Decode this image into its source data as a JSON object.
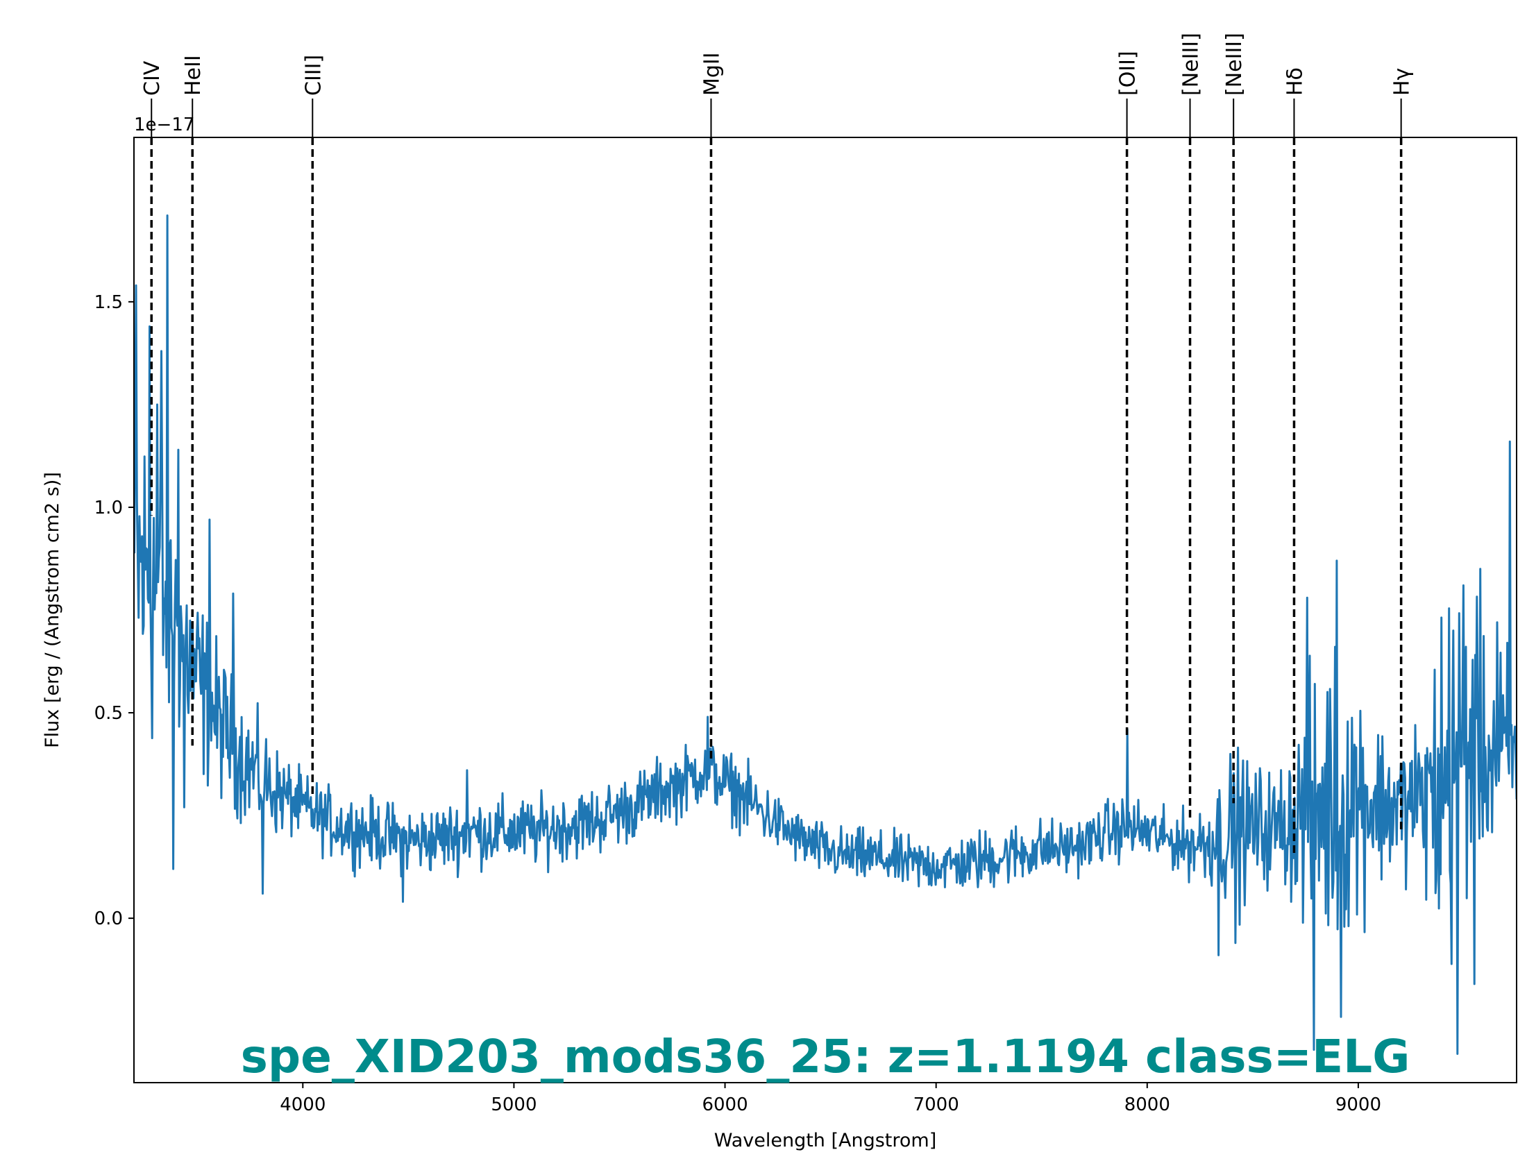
{
  "chart_data": {
    "type": "line",
    "title": "spe_XID203_mods36_25: z=1.1194 class=ELG",
    "xlabel": "Wavelength [Angstrom]",
    "ylabel": "Flux [erg / (Angstrom cm2 s)]",
    "y_offset_label": "1e−17",
    "xlim": [
      3200,
      9750
    ],
    "ylim": [
      -0.4,
      1.9
    ],
    "x_ticks": [
      4000,
      5000,
      6000,
      7000,
      8000,
      9000
    ],
    "x_tick_labels": [
      "4000",
      "5000",
      "6000",
      "7000",
      "8000",
      "9000"
    ],
    "y_ticks": [
      0.0,
      0.5,
      1.0,
      1.5
    ],
    "y_tick_labels": [
      "0.0",
      "0.5",
      "1.0",
      "1.5"
    ],
    "grid": false,
    "series_color": "#1f77b4",
    "title_color": "#008b8b",
    "spectrum": {
      "x": [
        3200,
        3300,
        3400,
        3500,
        3600,
        3700,
        3800,
        3900,
        4000,
        4100,
        4200,
        4300,
        4400,
        4500,
        4600,
        4700,
        4800,
        4900,
        5000,
        5100,
        5200,
        5300,
        5400,
        5500,
        5600,
        5700,
        5800,
        5850,
        5900,
        5950,
        6000,
        6100,
        6200,
        6300,
        6400,
        6500,
        6600,
        6700,
        6800,
        6900,
        7000,
        7100,
        7200,
        7300,
        7400,
        7500,
        7600,
        7700,
        7800,
        7900,
        8000,
        8100,
        8200,
        8300,
        8400,
        8500,
        8600,
        8700,
        8800,
        8900,
        9000,
        9100,
        9200,
        9300,
        9400,
        9500,
        9600,
        9700,
        9750
      ],
      "y": [
        0.85,
        0.82,
        0.72,
        0.58,
        0.48,
        0.4,
        0.34,
        0.3,
        0.27,
        0.24,
        0.22,
        0.21,
        0.2,
        0.19,
        0.19,
        0.2,
        0.21,
        0.21,
        0.21,
        0.21,
        0.22,
        0.23,
        0.24,
        0.26,
        0.28,
        0.31,
        0.33,
        0.35,
        0.36,
        0.35,
        0.33,
        0.29,
        0.25,
        0.21,
        0.18,
        0.16,
        0.15,
        0.15,
        0.14,
        0.13,
        0.13,
        0.13,
        0.14,
        0.15,
        0.16,
        0.17,
        0.17,
        0.18,
        0.21,
        0.22,
        0.21,
        0.19,
        0.18,
        0.19,
        0.21,
        0.22,
        0.22,
        0.24,
        0.27,
        0.3,
        0.3,
        0.28,
        0.27,
        0.28,
        0.32,
        0.42,
        0.4,
        0.38,
        0.36
      ],
      "noise_amplitude": [
        0.26,
        0.26,
        0.17,
        0.14,
        0.11,
        0.09,
        0.08,
        0.06,
        0.05,
        0.05,
        0.05,
        0.05,
        0.05,
        0.05,
        0.05,
        0.05,
        0.05,
        0.05,
        0.05,
        0.05,
        0.05,
        0.05,
        0.05,
        0.05,
        0.05,
        0.05,
        0.05,
        0.05,
        0.05,
        0.05,
        0.05,
        0.05,
        0.045,
        0.04,
        0.04,
        0.04,
        0.04,
        0.04,
        0.04,
        0.04,
        0.04,
        0.04,
        0.045,
        0.045,
        0.045,
        0.045,
        0.04,
        0.04,
        0.045,
        0.045,
        0.045,
        0.04,
        0.05,
        0.07,
        0.12,
        0.1,
        0.08,
        0.12,
        0.22,
        0.22,
        0.18,
        0.12,
        0.1,
        0.1,
        0.3,
        0.25,
        0.15,
        0.18,
        0.12
      ],
      "spikes": [
        {
          "x": 3210,
          "y": 1.54
        },
        {
          "x": 3275,
          "y": 1.44
        },
        {
          "x": 3310,
          "y": 1.25
        },
        {
          "x": 3330,
          "y": 1.38
        },
        {
          "x": 3360,
          "y": 1.71
        },
        {
          "x": 3385,
          "y": 0.12
        },
        {
          "x": 3410,
          "y": 1.14
        },
        {
          "x": 3440,
          "y": 0.27
        },
        {
          "x": 3560,
          "y": 0.97
        },
        {
          "x": 3670,
          "y": 0.79
        },
        {
          "x": 3810,
          "y": 0.06
        },
        {
          "x": 4475,
          "y": 0.04
        },
        {
          "x": 4780,
          "y": 0.36
        },
        {
          "x": 5920,
          "y": 0.49
        },
        {
          "x": 7905,
          "y": 0.46
        },
        {
          "x": 8340,
          "y": -0.09
        },
        {
          "x": 8420,
          "y": -0.06
        },
        {
          "x": 8760,
          "y": 0.78
        },
        {
          "x": 8790,
          "y": -0.32
        },
        {
          "x": 8900,
          "y": 0.87
        },
        {
          "x": 8920,
          "y": -0.24
        },
        {
          "x": 9270,
          "y": 0.47
        },
        {
          "x": 9450,
          "y": 0.7
        },
        {
          "x": 9470,
          "y": -0.33
        },
        {
          "x": 9500,
          "y": 0.81
        },
        {
          "x": 9550,
          "y": -0.16
        },
        {
          "x": 9580,
          "y": 0.85
        },
        {
          "x": 9660,
          "y": 0.72
        },
        {
          "x": 9720,
          "y": 1.16
        }
      ]
    },
    "lines": [
      {
        "name": "CIV",
        "x": 3283,
        "y_end": 0.98
      },
      {
        "name": "HeII",
        "x": 3477,
        "y_end": 0.42
      },
      {
        "name": "CIII]",
        "x": 4046,
        "y_end": 0.3
      },
      {
        "name": "MgII",
        "x": 5934,
        "y_end": 0.38
      },
      {
        "name": "[OII]",
        "x": 7904,
        "y_end": 0.44
      },
      {
        "name": "[NeIII]",
        "x": 8203,
        "y_end": 0.24
      },
      {
        "name": "[NeIII]",
        "x": 8409,
        "y_end": 0.28
      },
      {
        "name": "Hδ",
        "x": 8696,
        "y_end": 0.15
      },
      {
        "name": "Hγ",
        "x": 9203,
        "y_end": 0.21
      }
    ]
  }
}
